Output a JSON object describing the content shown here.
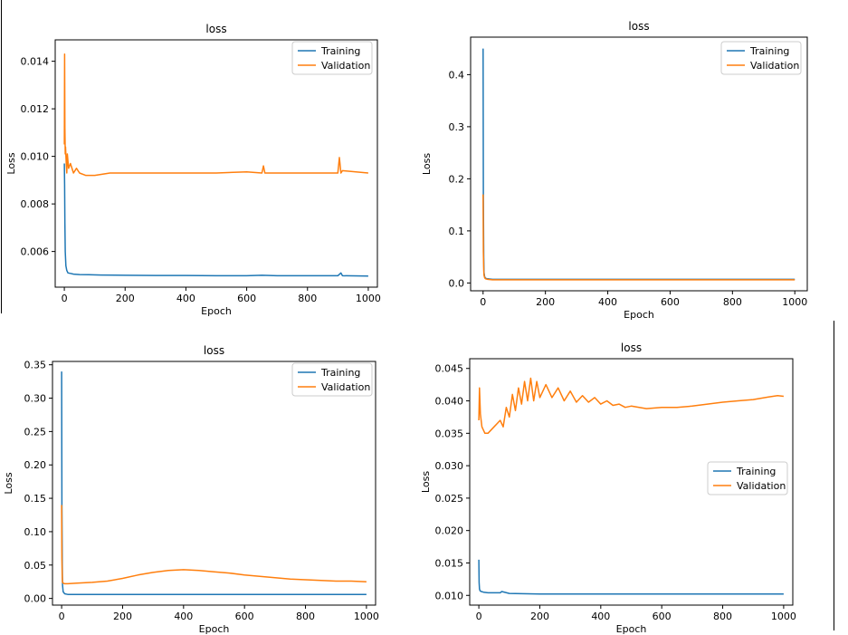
{
  "chart_data": [
    {
      "type": "line",
      "title": "loss",
      "xlabel": "Epoch",
      "ylabel": "Loss",
      "xlim": [
        -30,
        1030
      ],
      "ylim": [
        0.0045,
        0.0149
      ],
      "xticks": [
        0,
        200,
        400,
        600,
        800,
        1000
      ],
      "yticks": [
        0.006,
        0.008,
        0.01,
        0.012,
        0.014
      ],
      "ytick_labels": [
        "0.006",
        "0.008",
        "0.010",
        "0.012",
        "0.014"
      ],
      "legend_position": "top-right",
      "series": [
        {
          "name": "Training",
          "color": "#1f77b4",
          "x": [
            0,
            1,
            2,
            3,
            5,
            8,
            12,
            20,
            30,
            50,
            80,
            120,
            200,
            300,
            400,
            500,
            600,
            650,
            700,
            800,
            900,
            910,
            915,
            1000
          ],
          "values": [
            0.0097,
            0.0088,
            0.0072,
            0.006,
            0.0054,
            0.0052,
            0.0051,
            0.00508,
            0.00505,
            0.00503,
            0.00502,
            0.00501,
            0.005,
            0.00499,
            0.00499,
            0.00498,
            0.00498,
            0.005,
            0.00498,
            0.00498,
            0.00498,
            0.0051,
            0.00498,
            0.00497
          ]
        },
        {
          "name": "Validation",
          "color": "#ff7f0e",
          "x": [
            0,
            1,
            2,
            3,
            4,
            6,
            8,
            10,
            14,
            20,
            30,
            40,
            50,
            70,
            100,
            150,
            200,
            300,
            400,
            500,
            600,
            650,
            655,
            660,
            700,
            800,
            900,
            905,
            910,
            915,
            1000
          ],
          "values": [
            0.0105,
            0.0143,
            0.0112,
            0.0101,
            0.0104,
            0.0098,
            0.0093,
            0.0101,
            0.0095,
            0.0097,
            0.0093,
            0.0095,
            0.0093,
            0.0092,
            0.0092,
            0.0093,
            0.0093,
            0.0093,
            0.0093,
            0.0093,
            0.00935,
            0.0093,
            0.0096,
            0.0093,
            0.0093,
            0.0093,
            0.0093,
            0.00995,
            0.0093,
            0.0094,
            0.0093
          ]
        }
      ]
    },
    {
      "type": "line",
      "title": "loss",
      "xlabel": "Epoch",
      "ylabel": "Loss",
      "xlim": [
        -40,
        1040
      ],
      "ylim": [
        -0.015,
        0.472
      ],
      "xticks": [
        0,
        200,
        400,
        600,
        800,
        1000
      ],
      "yticks": [
        0.0,
        0.1,
        0.2,
        0.3,
        0.4
      ],
      "ytick_labels": [
        "0.0",
        "0.1",
        "0.2",
        "0.3",
        "0.4"
      ],
      "legend_position": "top-right",
      "series": [
        {
          "name": "Training",
          "color": "#1f77b4",
          "x": [
            0,
            1,
            2,
            3,
            5,
            8,
            15,
            30,
            100,
            1000
          ],
          "values": [
            0.45,
            0.16,
            0.05,
            0.02,
            0.012,
            0.009,
            0.008,
            0.007,
            0.007,
            0.007
          ]
        },
        {
          "name": "Validation",
          "color": "#ff7f0e",
          "x": [
            0,
            1,
            2,
            3,
            5,
            8,
            15,
            30,
            100,
            1000
          ],
          "values": [
            0.17,
            0.06,
            0.025,
            0.015,
            0.01,
            0.008,
            0.007,
            0.006,
            0.006,
            0.006
          ]
        }
      ]
    },
    {
      "type": "line",
      "title": "loss",
      "xlabel": "Epoch",
      "ylabel": "Loss",
      "xlim": [
        -30,
        1030
      ],
      "ylim": [
        -0.01,
        0.355
      ],
      "xticks": [
        0,
        200,
        400,
        600,
        800,
        1000
      ],
      "yticks": [
        0.0,
        0.05,
        0.1,
        0.15,
        0.2,
        0.25,
        0.3,
        0.35
      ],
      "ytick_labels": [
        "0.00",
        "0.05",
        "0.10",
        "0.15",
        "0.20",
        "0.25",
        "0.30",
        "0.35"
      ],
      "legend_position": "top-right",
      "series": [
        {
          "name": "Training",
          "color": "#1f77b4",
          "x": [
            0,
            1,
            2,
            3,
            5,
            10,
            20,
            50,
            1000
          ],
          "values": [
            0.34,
            0.14,
            0.05,
            0.02,
            0.01,
            0.007,
            0.006,
            0.006,
            0.006
          ]
        },
        {
          "name": "Validation",
          "color": "#ff7f0e",
          "x": [
            0,
            1,
            2,
            3,
            5,
            10,
            20,
            50,
            100,
            150,
            200,
            250,
            300,
            350,
            400,
            450,
            500,
            550,
            600,
            650,
            700,
            750,
            800,
            850,
            900,
            950,
            1000
          ],
          "values": [
            0.14,
            0.06,
            0.03,
            0.024,
            0.023,
            0.022,
            0.022,
            0.023,
            0.024,
            0.026,
            0.03,
            0.035,
            0.039,
            0.042,
            0.043,
            0.042,
            0.04,
            0.038,
            0.035,
            0.033,
            0.031,
            0.029,
            0.028,
            0.027,
            0.026,
            0.026,
            0.025
          ]
        }
      ]
    },
    {
      "type": "line",
      "title": "loss",
      "xlabel": "Epoch",
      "ylabel": "Loss",
      "xlim": [
        -30,
        1030
      ],
      "ylim": [
        0.0085,
        0.0465
      ],
      "xticks": [
        0,
        200,
        400,
        600,
        800,
        1000
      ],
      "yticks": [
        0.01,
        0.015,
        0.02,
        0.025,
        0.03,
        0.035,
        0.04,
        0.045
      ],
      "ytick_labels": [
        "0.010",
        "0.015",
        "0.020",
        "0.025",
        "0.030",
        "0.035",
        "0.040",
        "0.045"
      ],
      "legend_position": "center-right",
      "series": [
        {
          "name": "Training",
          "color": "#1f77b4",
          "x": [
            0,
            1,
            2,
            4,
            8,
            15,
            30,
            50,
            70,
            75,
            100,
            200,
            400,
            600,
            800,
            1000
          ],
          "values": [
            0.0155,
            0.012,
            0.011,
            0.0107,
            0.0106,
            0.0105,
            0.0104,
            0.0104,
            0.0104,
            0.0106,
            0.0103,
            0.0102,
            0.0102,
            0.0102,
            0.0102,
            0.0102
          ]
        },
        {
          "name": "Validation",
          "color": "#ff7f0e",
          "x": [
            0,
            2,
            5,
            10,
            20,
            30,
            40,
            50,
            60,
            70,
            80,
            90,
            100,
            110,
            120,
            130,
            140,
            150,
            160,
            170,
            180,
            190,
            200,
            220,
            240,
            260,
            280,
            300,
            320,
            340,
            360,
            380,
            400,
            420,
            440,
            460,
            480,
            500,
            550,
            600,
            650,
            700,
            750,
            800,
            850,
            900,
            950,
            980,
            1000
          ],
          "values": [
            0.037,
            0.042,
            0.038,
            0.036,
            0.035,
            0.035,
            0.0355,
            0.036,
            0.0365,
            0.037,
            0.036,
            0.039,
            0.0375,
            0.041,
            0.0385,
            0.042,
            0.0395,
            0.043,
            0.04,
            0.0435,
            0.04,
            0.043,
            0.0405,
            0.0425,
            0.0405,
            0.042,
            0.04,
            0.0415,
            0.0398,
            0.0408,
            0.0398,
            0.0405,
            0.0395,
            0.04,
            0.0393,
            0.0395,
            0.039,
            0.0392,
            0.0388,
            0.039,
            0.039,
            0.0392,
            0.0395,
            0.0398,
            0.04,
            0.0402,
            0.0406,
            0.0408,
            0.0407
          ]
        }
      ]
    }
  ]
}
